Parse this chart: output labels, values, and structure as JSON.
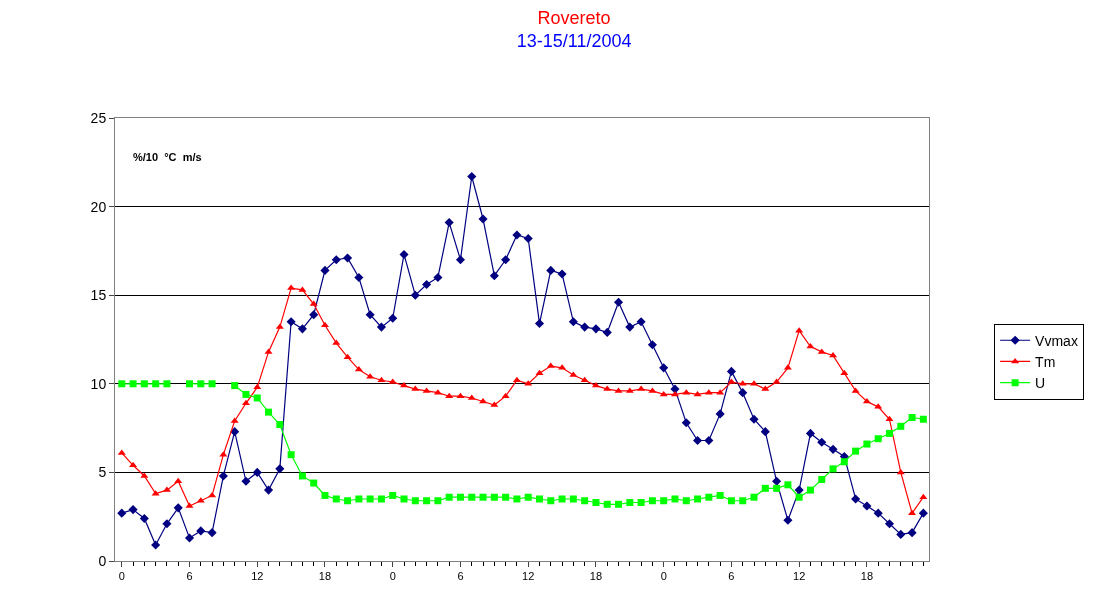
{
  "chart_data": {
    "type": "line",
    "title": "Rovereto",
    "subtitle": "13-15/11/2004",
    "annotations": [
      "%/10  °C  m/s"
    ],
    "categories": [
      "0",
      null,
      null,
      null,
      null,
      null,
      "6",
      null,
      null,
      null,
      null,
      null,
      "12",
      null,
      null,
      null,
      null,
      null,
      "18",
      null,
      null,
      null,
      null,
      null,
      "0",
      null,
      null,
      null,
      null,
      null,
      "6",
      null,
      null,
      null,
      null,
      null,
      "12",
      null,
      null,
      null,
      null,
      null,
      "18",
      null,
      null,
      null,
      null,
      null,
      "0",
      null,
      null,
      null,
      null,
      null,
      "6",
      null,
      null,
      null,
      null,
      null,
      "12",
      null,
      null,
      null,
      null,
      null,
      "18",
      null,
      null,
      null,
      null,
      null
    ],
    "series": [
      {
        "name": "Vvmax",
        "color": "#000080",
        "marker": "diamond",
        "values": [
          2.7,
          2.9,
          2.4,
          0.9,
          2.1,
          3.0,
          1.3,
          1.7,
          1.6,
          4.8,
          7.3,
          4.5,
          5.0,
          4.0,
          5.2,
          13.5,
          13.1,
          13.9,
          16.4,
          17.0,
          17.1,
          16.0,
          13.9,
          13.2,
          13.7,
          17.3,
          15.0,
          15.6,
          16.0,
          19.1,
          17.0,
          21.7,
          19.3,
          16.1,
          17.0,
          18.4,
          18.2,
          13.4,
          16.4,
          16.2,
          13.5,
          13.2,
          13.1,
          12.9,
          14.6,
          13.2,
          13.5,
          12.2,
          10.9,
          9.7,
          7.8,
          6.8,
          6.8,
          8.3,
          10.7,
          9.5,
          8.0,
          7.3,
          4.5,
          2.3,
          4.0,
          7.2,
          6.7,
          6.3,
          5.9,
          3.5,
          3.1,
          2.7,
          2.1,
          1.5,
          1.6,
          2.7
        ]
      },
      {
        "name": "Tm",
        "color": "#ff0000",
        "marker": "triangle",
        "values": [
          6.1,
          5.4,
          4.8,
          3.8,
          4.0,
          4.5,
          3.1,
          3.4,
          3.7,
          6.0,
          7.9,
          8.9,
          9.8,
          11.8,
          13.2,
          15.4,
          15.3,
          14.5,
          13.3,
          12.3,
          11.5,
          10.8,
          10.4,
          10.2,
          10.1,
          9.9,
          9.7,
          9.6,
          9.5,
          9.3,
          9.3,
          9.2,
          9.0,
          8.8,
          9.3,
          10.2,
          10.0,
          10.6,
          11.0,
          10.9,
          10.5,
          10.2,
          9.9,
          9.7,
          9.6,
          9.6,
          9.7,
          9.6,
          9.4,
          9.4,
          9.5,
          9.4,
          9.5,
          9.5,
          10.1,
          10.0,
          10.0,
          9.7,
          10.1,
          10.9,
          13.0,
          12.1,
          11.8,
          11.6,
          10.6,
          9.6,
          9.0,
          8.7,
          8.0,
          5.0,
          2.7,
          3.6
        ]
      },
      {
        "name": "U",
        "color": "#00ff00",
        "marker": "square",
        "values": [
          10,
          10,
          10,
          10,
          10,
          null,
          10,
          10,
          10,
          null,
          9.9,
          9.4,
          9.2,
          8.4,
          7.7,
          6.0,
          4.8,
          4.4,
          3.7,
          3.5,
          3.4,
          3.5,
          3.5,
          3.5,
          3.7,
          3.5,
          3.4,
          3.4,
          3.4,
          3.6,
          3.6,
          3.6,
          3.6,
          3.6,
          3.6,
          3.5,
          3.6,
          3.5,
          3.4,
          3.5,
          3.5,
          3.4,
          3.3,
          3.2,
          3.2,
          3.3,
          3.3,
          3.4,
          3.4,
          3.5,
          3.4,
          3.5,
          3.6,
          3.7,
          3.4,
          3.4,
          3.6,
          4.1,
          4.1,
          4.3,
          3.6,
          4.0,
          4.6,
          5.2,
          5.6,
          6.2,
          6.6,
          6.9,
          7.2,
          7.6,
          8.1,
          8.0
        ]
      }
    ],
    "ylim": [
      0,
      25
    ],
    "yticks": [
      0,
      5,
      10,
      15,
      20,
      25
    ],
    "grid": "y",
    "legend": "right",
    "line_style": "solid"
  }
}
